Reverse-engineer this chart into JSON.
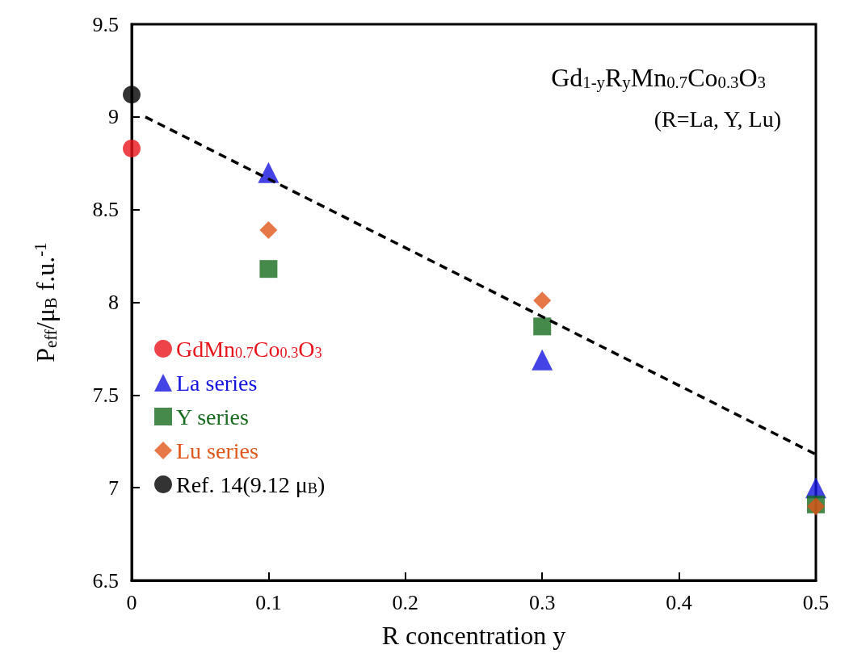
{
  "chart_data": {
    "type": "scatter",
    "title": "Gd$_{1-y}$R$_{y}$Mn$_{0.7}$Co$_{0.3}$O$_{3}$",
    "annotations": [
      "(R=La, Y, Lu)"
    ],
    "xlabel": "R concentration y",
    "ylabel": "P$_{eff}$/μ$_{B}$ f.u.$^{-1}$",
    "xlim": [
      0,
      0.5
    ],
    "xticks": [
      0,
      0.1,
      0.2,
      0.3,
      0.4,
      0.5
    ],
    "ylim": [
      6.5,
      9.5
    ],
    "yticks": [
      6.5,
      7,
      7.5,
      8,
      8.5,
      9,
      9.5
    ],
    "grid": false,
    "legend": "left",
    "series": [
      {
        "name": "GdMn$_{0.7}$Co$_{0.3}$O$_{3}$",
        "color": "#e8141c",
        "marker": "circle",
        "x": [
          0
        ],
        "values": [
          8.83
        ]
      },
      {
        "name": "La series",
        "color": "#1414e0",
        "marker": "triangle",
        "x": [
          0.1,
          0.3,
          0.5
        ],
        "values": [
          8.7,
          7.69,
          7.0
        ]
      },
      {
        "name": "Y series",
        "color": "#176b1e",
        "marker": "square",
        "x": [
          0.1,
          0.3,
          0.5
        ],
        "values": [
          8.18,
          7.87,
          6.91
        ]
      },
      {
        "name": "Lu series",
        "color": "#e0561a",
        "marker": "diamond",
        "x": [
          0.1,
          0.3,
          0.5
        ],
        "values": [
          8.39,
          8.01,
          6.9
        ]
      },
      {
        "name": "Ref. 14(9.12 μ$_{B}$)",
        "color": "#000000",
        "marker": "circle",
        "x": [
          0
        ],
        "values": [
          9.12
        ]
      },
      {
        "type": "line",
        "color": "#000000",
        "line_style": "dashed",
        "marker": "none",
        "x": [
          0.01,
          0.5
        ],
        "values": [
          9.0,
          7.18
        ]
      }
    ]
  }
}
